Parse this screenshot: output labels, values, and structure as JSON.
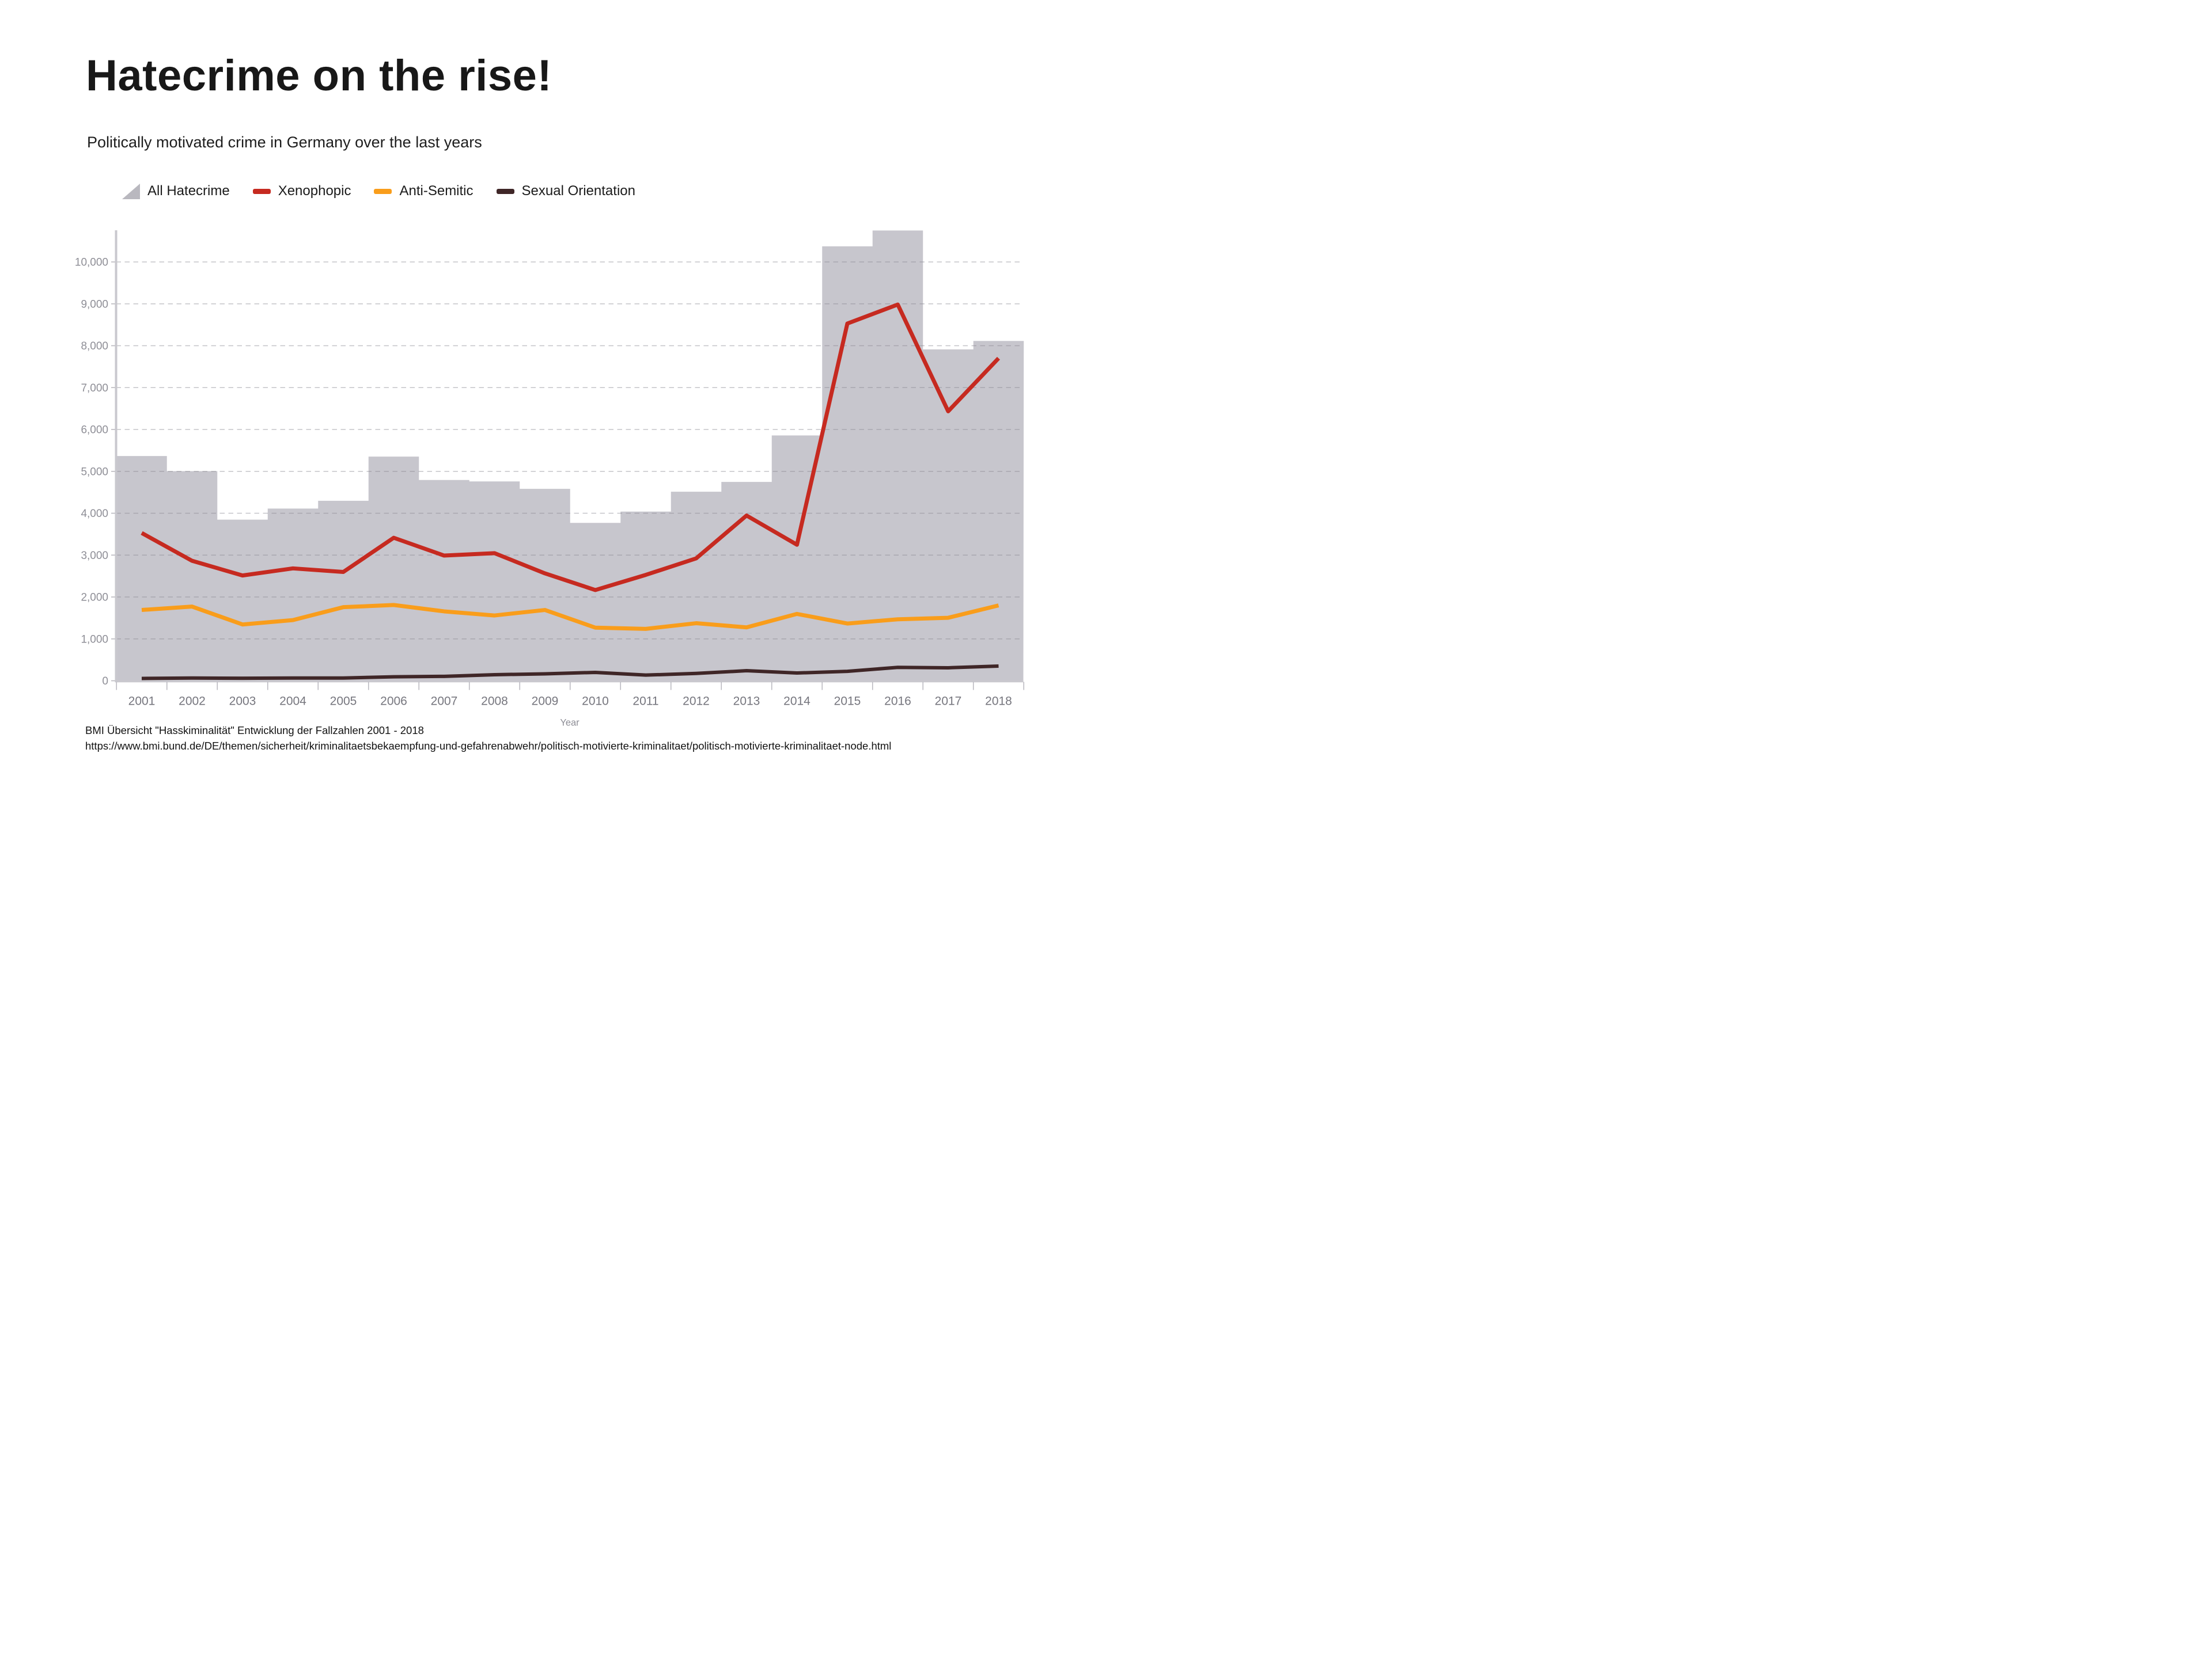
{
  "title": "Hatecrime on the rise!",
  "subtitle": "Politically motivated crime in Germany over the last years",
  "legend": {
    "items": [
      {
        "label": "All Hatecrime",
        "icon": "area-triangle-icon",
        "color": "#b9b8bf"
      },
      {
        "label": "Xenophopic",
        "icon": "dash-swatch-icon",
        "color": "#c62a20"
      },
      {
        "label": "Anti-Semitic",
        "icon": "dash-swatch-icon",
        "color": "#f99d1b"
      },
      {
        "label": "Sexual Orientation",
        "icon": "dash-swatch-icon",
        "color": "#3f2627"
      }
    ]
  },
  "chart_data": {
    "type": "area",
    "subtype": "step-area with overlaid lines",
    "title": "",
    "xlabel": "Year",
    "ylabel": "",
    "x": [
      2001,
      2002,
      2003,
      2004,
      2005,
      2006,
      2007,
      2008,
      2009,
      2010,
      2011,
      2012,
      2013,
      2014,
      2015,
      2016,
      2017,
      2018
    ],
    "ylim": [
      0,
      10800
    ],
    "yticks": [
      0,
      1000,
      2000,
      3000,
      4000,
      5000,
      6000,
      7000,
      8000,
      9000,
      10000
    ],
    "grid": "horizontal dashed",
    "legend_position": "top-left above plot",
    "series": [
      {
        "name": "All Hatecrime",
        "type": "step-area",
        "color": "#c7c6cd",
        "values": [
          5366,
          5006,
          3847,
          4111,
          4297,
          5352,
          4793,
          4759,
          4583,
          3770,
          4040,
          4514,
          4747,
          5858,
          10373,
          10751,
          7913,
          8113
        ]
      },
      {
        "name": "Xenophopic",
        "type": "line",
        "color": "#c62a20",
        "values": [
          3529,
          2864,
          2514,
          2683,
          2598,
          3414,
          2989,
          3046,
          2564,
          2166,
          2528,
          2922,
          3945,
          3248,
          8529,
          8983,
          6434,
          7701
        ]
      },
      {
        "name": "Anti-Semitic",
        "type": "line",
        "color": "#f99d1b",
        "values": [
          1691,
          1771,
          1344,
          1449,
          1757,
          1809,
          1657,
          1559,
          1690,
          1268,
          1239,
          1374,
          1275,
          1596,
          1366,
          1468,
          1504,
          1799
        ]
      },
      {
        "name": "Sexual Orientation",
        "type": "line",
        "color": "#3f2627",
        "values": [
          55,
          65,
          60,
          65,
          65,
          95,
          105,
          145,
          165,
          200,
          135,
          175,
          240,
          185,
          225,
          320,
          310,
          350
        ]
      }
    ]
  },
  "axis_colors": {
    "grid": "#8b8a93",
    "axis_line": "#c9c8ce",
    "y_label": "#8e8e96",
    "x_label": "#76767e",
    "axis_title": "#8e8e96"
  },
  "source": {
    "line1": "BMI Übersicht \"Hasskiminalität\" Entwicklung der Fallzahlen 2001 - 2018",
    "line2": "https://www.bmi.bund.de/DE/themen/sicherheit/kriminalitaetsbekaempfung-und-gefahrenabwehr/politisch-motivierte-kriminalitaet/politisch-motivierte-kriminalitaet-node.html"
  }
}
